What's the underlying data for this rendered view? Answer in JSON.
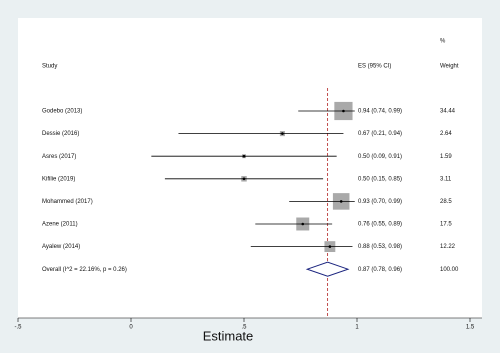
{
  "chart_data": {
    "type": "forest",
    "categories": [
      "Godebo (2013)",
      "Dessie (2016)",
      "Asres (2017)",
      "Kifilie (2019)",
      "Mohammed (2017)",
      "Azene (2011)",
      "Ayalew (2014)"
    ],
    "values": [
      0.94,
      0.67,
      0.5,
      0.5,
      0.93,
      0.76,
      0.88
    ],
    "lower": [
      0.74,
      0.21,
      0.09,
      0.15,
      0.7,
      0.55,
      0.53
    ],
    "upper": [
      0.99,
      0.94,
      0.91,
      0.85,
      0.99,
      0.89,
      0.98
    ],
    "value_labels": [
      "0.94 (0.74, 0.99)",
      "0.67 (0.21, 0.94)",
      "0.50 (0.09, 0.91)",
      "0.50 (0.15, 0.85)",
      "0.93 (0.70, 0.99)",
      "0.76 (0.55, 0.89)",
      "0.88 (0.53, 0.98)"
    ],
    "weights": [
      34.44,
      2.64,
      1.59,
      3.11,
      28.5,
      17.5,
      12.22
    ],
    "overall": {
      "label": "Overall  (I^2 = 22.16%, p = 0.26)",
      "value": 0.87,
      "lower": 0.78,
      "upper": 0.96,
      "value_label": "0.87 (0.78, 0.96)",
      "weight": 100,
      "weight_label": "100.00"
    },
    "header": {
      "study": "Study",
      "es": "ES (95% CI)",
      "weight_top": "%",
      "weight": "Weight"
    },
    "x_label": "Estimate",
    "xlim": [
      -0.5,
      1.5
    ],
    "xticks": [
      {
        "value": -0.5,
        "label": "-.5"
      },
      0,
      {
        "value": 0.5,
        "label": ".5"
      },
      1,
      1.5
    ],
    "box_color": "#a9a9a9",
    "line_color": "#000000",
    "diamond_color": "#1a237e",
    "ref_color": "#b22222"
  }
}
